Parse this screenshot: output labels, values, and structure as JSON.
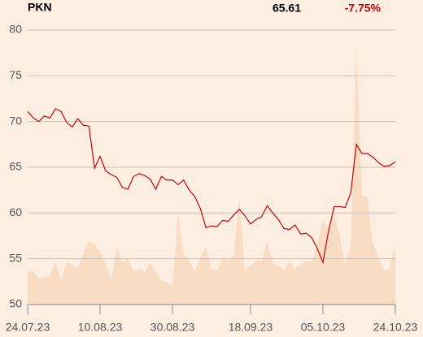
{
  "chart_data": {
    "type": "line",
    "title": "PKN",
    "price": "65.61",
    "change": "-7.75%",
    "categories": [
      "24.07.23",
      null,
      null,
      null,
      null,
      null,
      null,
      null,
      null,
      null,
      null,
      null,
      null,
      "10.08.23",
      null,
      null,
      null,
      null,
      null,
      null,
      null,
      null,
      null,
      null,
      null,
      null,
      "30.08.23",
      null,
      null,
      null,
      null,
      null,
      null,
      null,
      null,
      null,
      null,
      null,
      null,
      null,
      "18.09.23",
      null,
      null,
      null,
      null,
      null,
      null,
      null,
      null,
      null,
      null,
      null,
      null,
      "05.10.23",
      null,
      null,
      null,
      null,
      null,
      null,
      null,
      null,
      null,
      null,
      null,
      null,
      "24.10.23"
    ],
    "series": [
      {
        "color": "#cc0000",
        "values": [
          71.1,
          70.4,
          70.0,
          70.6,
          70.4,
          71.4,
          71.1,
          69.9,
          69.4,
          70.3,
          69.6,
          69.5,
          64.9,
          66.2,
          64.6,
          64.2,
          63.9,
          62.8,
          62.6,
          64.0,
          64.3,
          64.1,
          63.7,
          62.6,
          64.0,
          63.6,
          63.6,
          63.1,
          63.6,
          62.5,
          61.8,
          60.5,
          58.4,
          58.6,
          58.5,
          59.2,
          59.1,
          59.8,
          60.4,
          59.7,
          58.8,
          59.3,
          59.6,
          60.8,
          60.0,
          59.3,
          58.3,
          58.2,
          58.7,
          57.7,
          57.8,
          57.3,
          56.1,
          54.6,
          58.0,
          60.7,
          60.7,
          60.6,
          62.2,
          67.5,
          66.5,
          66.5,
          66.1,
          65.5,
          65.1,
          65.2,
          65.6
        ]
      },
      {
        "color": "#f9dcc4",
        "axis": "y2",
        "values": [
          12.4,
          12,
          9.5,
          10,
          10.4,
          15.7,
          8.9,
          15.4,
          14.5,
          13.3,
          18.6,
          23,
          22,
          19,
          15,
          9,
          21,
          15,
          17,
          12.4,
          13,
          12,
          15,
          12,
          9,
          8,
          7,
          33,
          18,
          16,
          12,
          17,
          21,
          13,
          12.4,
          17,
          16,
          18,
          39,
          12.4,
          14,
          16,
          16,
          23,
          15,
          14,
          12.4,
          16,
          13,
          14.5,
          16,
          15,
          22,
          31,
          27.5,
          33,
          25,
          14,
          21.6,
          94,
          40,
          39,
          22,
          17,
          12.4,
          13,
          22
        ]
      }
    ],
    "ylim": [
      50,
      80
    ],
    "yticks": [
      50,
      55,
      60,
      65,
      70,
      75,
      80
    ],
    "y2lim": [
      0,
      100
    ],
    "grid": true
  }
}
